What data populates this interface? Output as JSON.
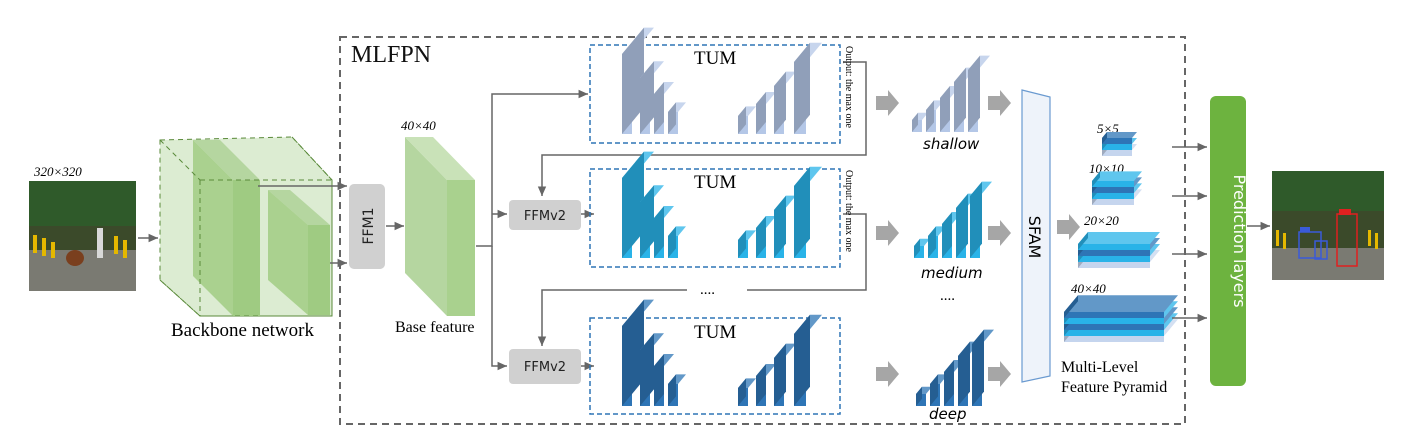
{
  "title": "MLFPN",
  "input": {
    "size_label": "320×320"
  },
  "backbone": {
    "label": "Backbone network"
  },
  "ffm1": {
    "label": "FFM1"
  },
  "base_feature": {
    "size_label": "40×40",
    "label": "Base feature"
  },
  "tums": [
    {
      "label": "TUM",
      "output_note": "Output: the max one",
      "style": "light"
    },
    {
      "label": "TUM",
      "output_note": "Output: the max one",
      "style": "medium"
    },
    {
      "label": "TUM",
      "style": "dark"
    }
  ],
  "ffmv2": {
    "label": "FFMv2"
  },
  "ellipsis": "....",
  "features": {
    "shallow": "shallow",
    "medium": "medium",
    "deep": "deep",
    "ellipsis": "...."
  },
  "sfam": {
    "label": "SFAM"
  },
  "pyramid": {
    "levels": [
      "5×5",
      "10×10",
      "20×20",
      "40×40"
    ],
    "label_line1": "Multi-Level",
    "label_line2": "Feature Pyramid"
  },
  "prediction": {
    "label": "Prediction layers"
  },
  "colors": {
    "light_blue": "#b4c7e7",
    "medium_blue": "#29b3e8",
    "dark_blue": "#2e75b6",
    "green": "#6db33f",
    "backbone_green": "#a9d18e",
    "gray_box": "#d0d0d0"
  }
}
